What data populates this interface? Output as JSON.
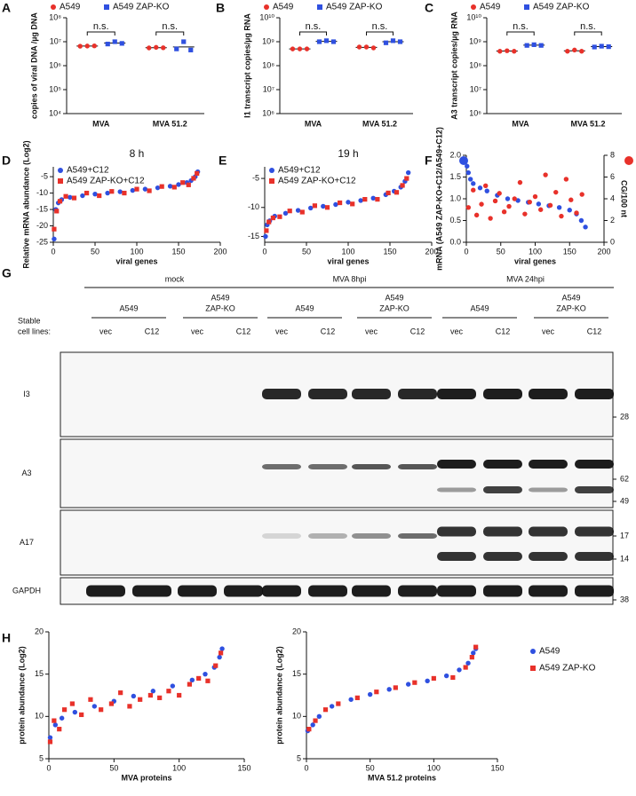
{
  "chart_data": [
    {
      "type": "dot",
      "panel": "A",
      "ylabel": "copies of viral DNA /µg DNA",
      "log": true,
      "categories": [
        "MVA",
        "MVA 51.2"
      ],
      "ylim": [
        10000,
        100000000
      ],
      "yticks": [
        {
          "value": 10000,
          "label": "10⁴"
        },
        {
          "value": 100000,
          "label": "10⁵"
        },
        {
          "value": 1000000,
          "label": "10⁶"
        },
        {
          "value": 10000000,
          "label": "10⁷"
        },
        {
          "value": 100000000,
          "label": "10⁸"
        }
      ],
      "annotations": [
        "n.s.",
        "n.s."
      ],
      "legend": "top",
      "series": [
        {
          "name": "A549",
          "color": "#e8312a",
          "marker": "circle",
          "values": [
            [
              6500000,
              6600000,
              6700000
            ],
            [
              5500000,
              5800000,
              5600000
            ]
          ]
        },
        {
          "name": "A549 ZAP-KO",
          "color": "#2f50e0",
          "marker": "square",
          "values": [
            [
              8000000,
              10000000,
              8500000
            ],
            [
              5000000,
              10000000,
              4500000
            ]
          ]
        }
      ]
    },
    {
      "type": "dot",
      "panel": "B",
      "ylabel": "I1 transcript copies/µg RNA",
      "log": true,
      "categories": [
        "MVA",
        "MVA 51.2"
      ],
      "ylim": [
        1000000,
        10000000000
      ],
      "yticks": [
        {
          "value": 1000000,
          "label": "10⁶"
        },
        {
          "value": 10000000,
          "label": "10⁷"
        },
        {
          "value": 100000000,
          "label": "10⁸"
        },
        {
          "value": 1000000000,
          "label": "10⁹"
        },
        {
          "value": 10000000000,
          "label": "10¹⁰"
        }
      ],
      "annotations": [
        "n.s.",
        "n.s."
      ],
      "legend": "top",
      "series": [
        {
          "name": "A549",
          "color": "#e8312a",
          "marker": "circle",
          "values": [
            [
              500000000,
              500000000,
              500000000
            ],
            [
              600000000,
              600000000,
              550000000
            ]
          ]
        },
        {
          "name": "A549 ZAP-KO",
          "color": "#2f50e0",
          "marker": "square",
          "values": [
            [
              1000000000,
              1100000000,
              1000000000
            ],
            [
              900000000,
              1100000000,
              1000000000
            ]
          ]
        }
      ]
    },
    {
      "type": "dot",
      "panel": "C",
      "ylabel": "A3 transcript copies/µg RNA",
      "log": true,
      "categories": [
        "MVA",
        "MVA 51.2"
      ],
      "ylim": [
        1000000,
        10000000000
      ],
      "yticks": [
        {
          "value": 1000000,
          "label": "10⁶"
        },
        {
          "value": 10000000,
          "label": "10⁷"
        },
        {
          "value": 100000000,
          "label": "10⁸"
        },
        {
          "value": 1000000000,
          "label": "10⁹"
        },
        {
          "value": 10000000000,
          "label": "10¹⁰"
        }
      ],
      "annotations": [
        "n.s.",
        "n.s."
      ],
      "legend": "top",
      "series": [
        {
          "name": "A549",
          "color": "#e8312a",
          "marker": "circle",
          "values": [
            [
              400000000,
              420000000,
              400000000
            ],
            [
              400000000,
              450000000,
              400000000
            ]
          ]
        },
        {
          "name": "A549 ZAP-KO",
          "color": "#2f50e0",
          "marker": "square",
          "values": [
            [
              700000000,
              750000000,
              700000000
            ],
            [
              600000000,
              650000000,
              620000000
            ]
          ]
        }
      ]
    },
    {
      "type": "scatter",
      "panel": "D",
      "title": "8 h",
      "ylabel": "Relative mRNA abundance (Log2)",
      "xlabel": "viral genes",
      "xlim": [
        0,
        200
      ],
      "xticks": [
        0,
        50,
        100,
        150,
        200
      ],
      "ylim": [
        -25,
        -2
      ],
      "yticks": [
        -25,
        -20,
        -15,
        -10,
        -5
      ],
      "legend": "top-left",
      "series": [
        {
          "name": "A549+C12",
          "color": "#2f50e0",
          "marker": "circle",
          "x": [
            1,
            3,
            6,
            10,
            20,
            35,
            50,
            65,
            80,
            95,
            110,
            125,
            140,
            150,
            160,
            165,
            170,
            173
          ],
          "values": [
            -24,
            -15,
            -13,
            -12,
            -11.3,
            -10.8,
            -10.3,
            -10,
            -9.6,
            -9.2,
            -8.8,
            -8.4,
            -7.9,
            -7.4,
            -6.8,
            -6.2,
            -5,
            -3.5
          ]
        },
        {
          "name": "A549 ZAP-KO+C12",
          "color": "#e8312a",
          "marker": "square",
          "x": [
            1,
            4,
            8,
            15,
            25,
            40,
            55,
            70,
            85,
            100,
            115,
            130,
            145,
            155,
            162,
            168,
            172
          ],
          "values": [
            -21,
            -15.5,
            -12.5,
            -11,
            -11.5,
            -10,
            -10.8,
            -9.5,
            -10,
            -8.8,
            -9.3,
            -8,
            -8.2,
            -6.8,
            -7.5,
            -5.5,
            -4
          ]
        }
      ]
    },
    {
      "type": "scatter",
      "panel": "E",
      "title": "19 h",
      "xlabel": "viral genes",
      "xlim": [
        0,
        200
      ],
      "xticks": [
        0,
        50,
        100,
        150,
        200
      ],
      "ylim": [
        -16,
        -3
      ],
      "yticks": [
        -15,
        -10,
        -5
      ],
      "legend": "top-left",
      "series": [
        {
          "name": "A549+C12",
          "color": "#2f50e0",
          "marker": "circle",
          "x": [
            1,
            3,
            6,
            12,
            25,
            40,
            55,
            70,
            85,
            100,
            115,
            130,
            145,
            155,
            163,
            168,
            172
          ],
          "values": [
            -15,
            -13,
            -12.3,
            -11.5,
            -11,
            -10.5,
            -10.1,
            -9.8,
            -9.5,
            -9.1,
            -8.8,
            -8.4,
            -7.8,
            -7.2,
            -6.5,
            -5.5,
            -4
          ]
        },
        {
          "name": "A549 ZAP-KO+C12",
          "color": "#e8312a",
          "marker": "square",
          "x": [
            2,
            5,
            10,
            18,
            30,
            45,
            60,
            75,
            90,
            105,
            120,
            135,
            148,
            158,
            165,
            170
          ],
          "values": [
            -14,
            -12.5,
            -11.8,
            -11.6,
            -10.6,
            -10.8,
            -9.7,
            -10,
            -9.2,
            -9.4,
            -8.6,
            -8.6,
            -7.5,
            -7.4,
            -6.2,
            -5
          ]
        }
      ]
    },
    {
      "type": "scatter",
      "panel": "F",
      "ylabel": "mRNA (A549 ZAP-KO+C12/A549+C12)",
      "y2label": "CG/100 nt",
      "xlabel": "viral genes",
      "xlim": [
        0,
        200
      ],
      "xticks": [
        0,
        50,
        100,
        150,
        200
      ],
      "ylim": [
        0,
        2
      ],
      "yticks": [
        {
          "value": 0,
          "label": "0.0"
        },
        0.5,
        {
          "value": 1,
          "label": "1.0"
        },
        1.5,
        {
          "value": 2,
          "label": "2.0"
        }
      ],
      "y2lim": [
        0,
        8
      ],
      "y2ticks": [
        0,
        2,
        4,
        6,
        8
      ],
      "legend": "top-corners",
      "series": [
        {
          "color": "#2f50e0",
          "marker": "circle",
          "x": [
            1,
            3,
            6,
            10,
            20,
            30,
            45,
            60,
            75,
            90,
            105,
            120,
            135,
            150,
            160,
            167,
            173
          ],
          "values": [
            1.75,
            1.6,
            1.45,
            1.35,
            1.25,
            1.18,
            1.08,
            1.0,
            0.96,
            0.92,
            0.88,
            0.84,
            0.8,
            0.74,
            0.65,
            0.5,
            0.35
          ]
        },
        {
          "color": "#e8312a",
          "marker": "circle",
          "axis": "y2",
          "x": [
            3,
            10,
            15,
            22,
            28,
            35,
            42,
            48,
            55,
            62,
            70,
            78,
            85,
            92,
            100,
            108,
            115,
            122,
            130,
            138,
            145,
            152,
            160,
            168
          ],
          "values": [
            3.2,
            4.8,
            2.5,
            3.5,
            5.2,
            2.2,
            3.8,
            4.5,
            2.8,
            3.3,
            4.0,
            5.5,
            2.6,
            3.7,
            4.2,
            3.0,
            6.2,
            3.4,
            4.6,
            2.4,
            5.8,
            3.9,
            2.7,
            4.4
          ]
        }
      ]
    },
    {
      "type": "scatter",
      "panel": "H",
      "ylabel": "protein abundance (Log2)",
      "xlabel": "MVA proteins",
      "xlim": [
        0,
        150
      ],
      "xticks": [
        0,
        50,
        100,
        150
      ],
      "ylim": [
        5,
        20
      ],
      "yticks": [
        5,
        10,
        15,
        20
      ],
      "series": [
        {
          "color": "#2f50e0",
          "marker": "circle",
          "x": [
            1,
            5,
            10,
            20,
            35,
            50,
            65,
            80,
            95,
            110,
            120,
            127,
            131,
            133
          ],
          "values": [
            7.5,
            9,
            9.8,
            10.5,
            11.2,
            11.8,
            12.4,
            13,
            13.6,
            14.3,
            15,
            15.8,
            17,
            18
          ]
        },
        {
          "color": "#e8312a",
          "marker": "square",
          "x": [
            1,
            4,
            8,
            12,
            18,
            25,
            32,
            40,
            48,
            55,
            62,
            70,
            78,
            85,
            92,
            100,
            108,
            115,
            122,
            128,
            132
          ],
          "values": [
            7,
            9.5,
            8.5,
            10.8,
            11.5,
            10.2,
            12,
            10.8,
            11.5,
            12.8,
            11.2,
            12,
            12.5,
            12.2,
            13,
            12.5,
            13.8,
            14.5,
            14.2,
            16,
            17.5
          ]
        }
      ]
    },
    {
      "type": "scatter",
      "ylabel": "protein abundance (Log2)",
      "xlabel": "MVA 51.2 proteins",
      "xlim": [
        0,
        150
      ],
      "xticks": [
        0,
        50,
        100,
        150
      ],
      "ylim": [
        5,
        20
      ],
      "yticks": [
        5,
        10,
        15,
        20
      ],
      "legend": "right",
      "series": [
        {
          "name": "A549",
          "color": "#2f50e0",
          "marker": "circle",
          "x": [
            1,
            5,
            10,
            20,
            35,
            50,
            65,
            80,
            95,
            110,
            120,
            127,
            131,
            133
          ],
          "values": [
            8.3,
            9,
            10,
            11.2,
            12,
            12.6,
            13.2,
            13.8,
            14.2,
            14.8,
            15.5,
            16.3,
            17.5,
            18
          ]
        },
        {
          "name": "A549 ZAP-KO",
          "color": "#e8312a",
          "marker": "square",
          "x": [
            2,
            7,
            15,
            25,
            40,
            55,
            70,
            85,
            100,
            115,
            125,
            130,
            133
          ],
          "values": [
            8.5,
            9.5,
            10.8,
            11.5,
            12.2,
            12.9,
            13.4,
            14,
            14.5,
            14.6,
            15.8,
            17,
            18.2
          ]
        }
      ]
    }
  ],
  "blot": {
    "panel": "G",
    "row_label": [
      "Stable",
      "cell lines:"
    ],
    "groups": [
      {
        "label": "mock",
        "subgroups": [
          {
            "label": [
              "A549"
            ],
            "lanes": [
              "vec",
              "C12"
            ]
          },
          {
            "label": [
              "A549",
              "ZAP-KO"
            ],
            "lanes": [
              "vec",
              "C12"
            ]
          }
        ]
      },
      {
        "label": "MVA 8hpi",
        "subgroups": [
          {
            "label": [
              "A549"
            ],
            "lanes": [
              "vec",
              "C12"
            ]
          },
          {
            "label": [
              "A549",
              "ZAP-KO"
            ],
            "lanes": [
              "vec",
              "C12"
            ]
          }
        ]
      },
      {
        "label": "MVA 24hpi",
        "subgroups": [
          {
            "label": [
              "A549"
            ],
            "lanes": [
              "vec",
              "C12"
            ]
          },
          {
            "label": [
              "A549",
              "ZAP-KO"
            ],
            "lanes": [
              "vec",
              "C12"
            ]
          }
        ]
      }
    ],
    "rows": [
      {
        "label": "I3",
        "markers": [
          28
        ]
      },
      {
        "label": "A3",
        "markers": [
          62,
          49
        ]
      },
      {
        "label": "A17",
        "markers": [
          17,
          14
        ]
      },
      {
        "label": "GAPDH",
        "markers": [
          38
        ]
      }
    ]
  }
}
